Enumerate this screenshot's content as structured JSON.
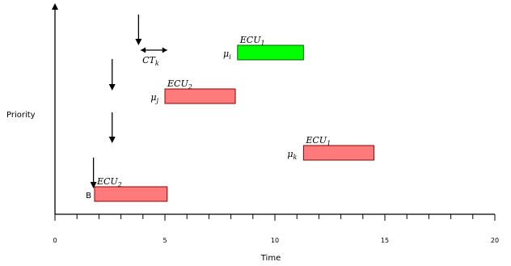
{
  "chart_data": {
    "type": "timeline",
    "xlabel": "Time",
    "ylabel": "Priority",
    "xlim": [
      0,
      20
    ],
    "ticks": [
      "0",
      "5",
      "10",
      "15",
      "20"
    ],
    "minor_tick_step": 1,
    "tasks": [
      {
        "ecu_label": "ECU",
        "ecu_sub": "1",
        "task_label": "μ",
        "task_sub": "i",
        "start": 8.3,
        "end": 11.3,
        "color": "#00ff00",
        "stroke": "#006600",
        "row": "top"
      },
      {
        "ecu_label": "ECU",
        "ecu_sub": "2",
        "task_label": "μ",
        "task_sub": "j",
        "start": 5.0,
        "end": 8.2,
        "color": "#ff7b7b",
        "stroke": "#880000",
        "row": "upper"
      },
      {
        "ecu_label": "ECU",
        "ecu_sub": "1",
        "task_label": "μ",
        "task_sub": "k",
        "start": 11.3,
        "end": 14.5,
        "color": "#ff7b7b",
        "stroke": "#880000",
        "row": "lower"
      },
      {
        "ecu_label": "ECU",
        "ecu_sub": "2",
        "task_label": "B",
        "task_sub": "",
        "start": 1.8,
        "end": 5.1,
        "color": "#ff7b7b",
        "stroke": "#880000",
        "row": "bottom"
      }
    ],
    "release_arrows": [
      {
        "x": 3.8,
        "row": "top"
      },
      {
        "x": 2.6,
        "row": "upper"
      },
      {
        "x": 2.6,
        "row": "mid"
      },
      {
        "x": 1.75,
        "row": "bottom"
      }
    ],
    "interval": {
      "label": "CT",
      "sub": "k",
      "from": 3.9,
      "to": 5.1
    }
  }
}
